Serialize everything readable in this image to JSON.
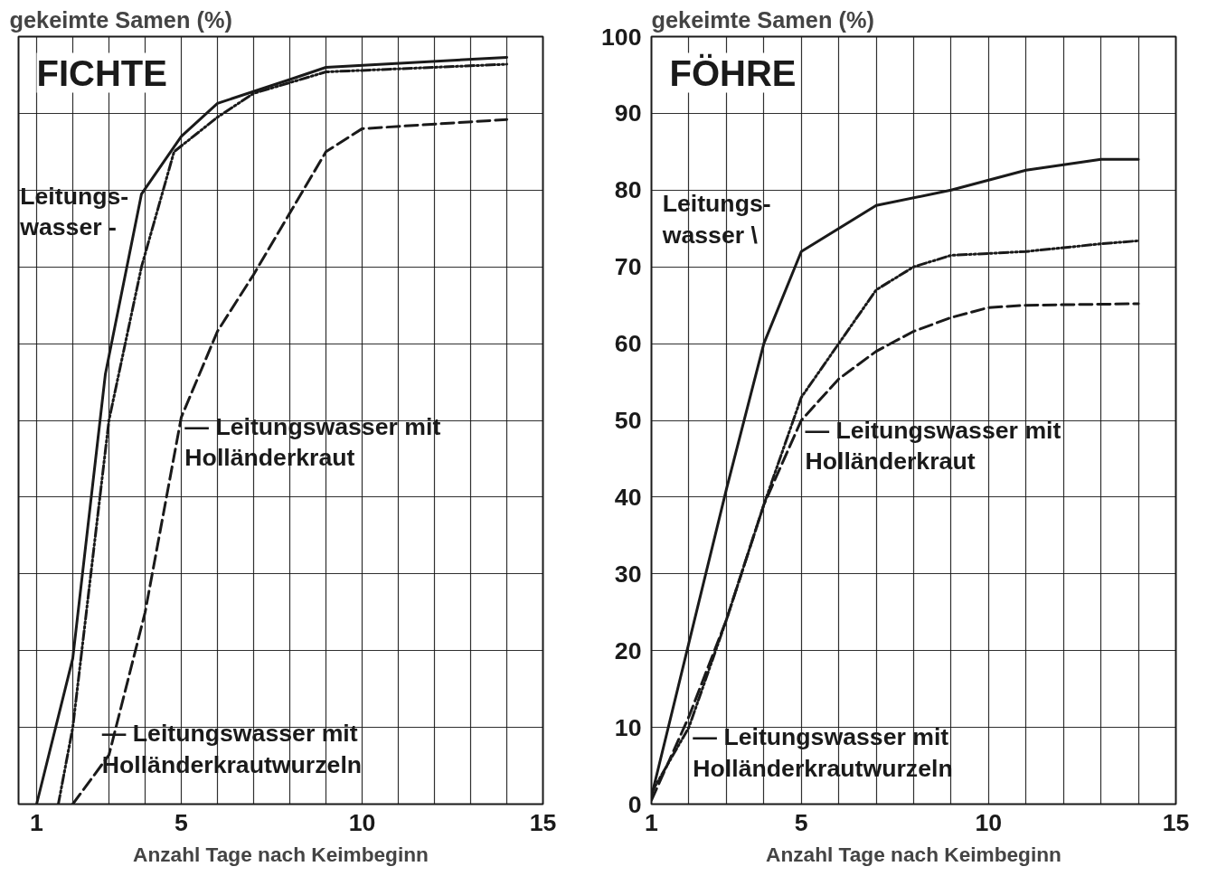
{
  "chart_data": [
    {
      "type": "line",
      "title": "FICHTE",
      "xlabel": "Anzahl Tage nach Keimbeginn",
      "ylabel": "gekeimte Samen (%)",
      "xlim": [
        0.5,
        15
      ],
      "ylim": [
        0,
        100
      ],
      "xticks": [
        1,
        {
          "value": 2,
          "label": null
        },
        {
          "value": 3,
          "label": null
        },
        {
          "value": 4,
          "label": null
        },
        5,
        {
          "value": 6,
          "label": null
        },
        {
          "value": 7,
          "label": null
        },
        {
          "value": 8,
          "label": null
        },
        {
          "value": 9,
          "label": null
        },
        10,
        {
          "value": 11,
          "label": null
        },
        {
          "value": 12,
          "label": null
        },
        {
          "value": 13,
          "label": null
        },
        {
          "value": 14,
          "label": null
        },
        15
      ],
      "yticks": [
        0,
        10,
        20,
        30,
        40,
        50,
        60,
        70,
        80,
        90,
        100
      ],
      "grid": true,
      "tick_labels": "x",
      "series": [
        {
          "color": "#1a1a1a",
          "line_style": "solid",
          "x": [
            1,
            2,
            2.9,
            3.9,
            5,
            6,
            8,
            9,
            14
          ],
          "values": [
            0,
            19,
            56,
            79.5,
            87,
            91.3,
            94.4,
            96,
            97.3
          ]
        },
        {
          "color": "#1a1a1a",
          "line_style": "dotted",
          "x": [
            1.6,
            2,
            3,
            3.9,
            4.8,
            6,
            7,
            9,
            14
          ],
          "values": [
            0,
            10,
            50,
            70,
            85,
            89.5,
            92.6,
            95.4,
            96.4
          ]
        },
        {
          "color": "#1a1a1a",
          "line_style": "dashed",
          "x": [
            2,
            3,
            4,
            5,
            6,
            7,
            9,
            10,
            14
          ],
          "values": [
            0,
            6.4,
            25,
            50.4,
            61.6,
            69,
            85,
            88,
            89.2
          ]
        }
      ],
      "annotations": [
        "Leitungs-\nwasser -",
        "— Leitungswasser mit\n   Holländerkraut",
        "— Leitungswasser mit\n   Holländerkrautwurzeln"
      ]
    },
    {
      "type": "line",
      "title": "FÖHRE",
      "xlabel": "Anzahl Tage nach Keimbeginn",
      "ylabel": "gekeimte Samen (%)",
      "xlim": [
        1,
        15
      ],
      "ylim": [
        0,
        100
      ],
      "xticks": [
        1,
        {
          "value": 2,
          "label": null
        },
        {
          "value": 3,
          "label": null
        },
        {
          "value": 4,
          "label": null
        },
        5,
        {
          "value": 6,
          "label": null
        },
        {
          "value": 7,
          "label": null
        },
        {
          "value": 8,
          "label": null
        },
        {
          "value": 9,
          "label": null
        },
        10,
        {
          "value": 11,
          "label": null
        },
        {
          "value": 12,
          "label": null
        },
        {
          "value": 13,
          "label": null
        },
        {
          "value": 14,
          "label": null
        },
        15
      ],
      "yticks": [
        0,
        10,
        20,
        30,
        40,
        50,
        60,
        70,
        80,
        90,
        100
      ],
      "grid": true,
      "series": [
        {
          "color": "#1a1a1a",
          "line_style": "solid",
          "x": [
            1,
            2,
            3,
            4,
            5,
            7,
            9,
            11,
            13,
            14
          ],
          "values": [
            1,
            21,
            41,
            60,
            72,
            78,
            80,
            82.6,
            84,
            84
          ]
        },
        {
          "color": "#1a1a1a",
          "line_style": "dotted",
          "x": [
            1,
            2,
            3,
            4,
            5,
            6,
            7,
            8,
            9,
            11,
            13,
            14
          ],
          "values": [
            1.5,
            10,
            24,
            39,
            53,
            60,
            67,
            70,
            71.5,
            72,
            73,
            73.4
          ]
        },
        {
          "color": "#1a1a1a",
          "line_style": "dashed",
          "x": [
            1,
            2,
            3,
            4,
            5,
            6,
            7,
            8,
            9,
            10,
            11,
            14
          ],
          "values": [
            0.5,
            11.4,
            24,
            39,
            50,
            55.4,
            59,
            61.6,
            63.4,
            64.7,
            65,
            65.2
          ]
        }
      ],
      "annotations": [
        "Leitungs-\nwasser \\",
        "— Leitungswasser mit\n   Holländerkraut",
        "— Leitungswasser mit\n   Holländerkrautwurzeln"
      ]
    }
  ]
}
